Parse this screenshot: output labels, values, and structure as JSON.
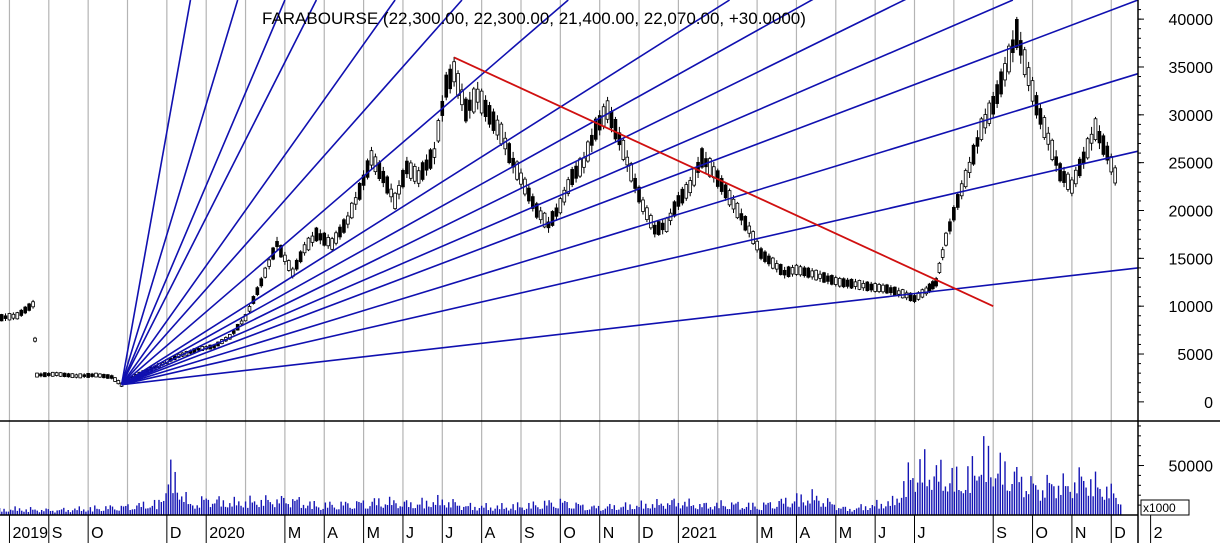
{
  "chart_data": {
    "type": "candlestick",
    "title": "FARABOURSE (22,300.00, 22,300.00, 21,400.00, 22,070.00, +30.0000)",
    "price_axis": {
      "ylim": [
        -2000,
        42000
      ],
      "ticks": [
        "0",
        "5000",
        "10000",
        "15000",
        "20000",
        "25000",
        "30000",
        "35000",
        "40000"
      ],
      "tick_values": [
        0,
        5000,
        10000,
        15000,
        20000,
        25000,
        30000,
        35000,
        40000
      ]
    },
    "volume_axis": {
      "unit_label": "x1000",
      "ticks": [
        "50000"
      ],
      "tick_values": [
        50000
      ],
      "ylim": [
        0,
        95000
      ]
    },
    "x_axis": {
      "labels": [
        "2019",
        "S",
        "O",
        "D",
        "2020",
        "M",
        "A",
        "M",
        "J",
        "J",
        "A",
        "S",
        "O",
        "N",
        "D",
        "2021",
        "M",
        "A",
        "M",
        "J",
        "J",
        "S",
        "O",
        "N",
        "D",
        "2"
      ],
      "label_months": [
        7,
        8,
        9,
        11,
        12,
        14,
        15,
        16,
        17,
        18,
        19,
        20,
        21,
        22,
        23,
        24,
        26,
        27,
        28,
        29,
        30,
        32,
        33,
        34,
        35,
        36
      ]
    },
    "grid": true,
    "price_series": [
      {
        "t": 6.0,
        "v": 9800
      },
      {
        "t": 6.4,
        "v": 9500
      },
      {
        "t": 6.8,
        "v": 8800
      },
      {
        "t": 7.2,
        "v": 9000
      },
      {
        "t": 7.6,
        "v": 10200
      },
      {
        "t": 7.7,
        "v": 2800
      },
      {
        "t": 8.2,
        "v": 2900
      },
      {
        "t": 8.7,
        "v": 2700
      },
      {
        "t": 9.2,
        "v": 2800
      },
      {
        "t": 9.6,
        "v": 2600
      },
      {
        "t": 9.85,
        "v": 1800
      },
      {
        "t": 10.3,
        "v": 2900
      },
      {
        "t": 10.8,
        "v": 3800
      },
      {
        "t": 11.3,
        "v": 4800
      },
      {
        "t": 11.8,
        "v": 5500
      },
      {
        "t": 12.2,
        "v": 5800
      },
      {
        "t": 12.6,
        "v": 6800
      },
      {
        "t": 13.0,
        "v": 8800
      },
      {
        "t": 13.4,
        "v": 12500
      },
      {
        "t": 13.8,
        "v": 16500
      },
      {
        "t": 14.2,
        "v": 13500
      },
      {
        "t": 14.5,
        "v": 16000
      },
      {
        "t": 14.8,
        "v": 17500
      },
      {
        "t": 15.2,
        "v": 16500
      },
      {
        "t": 15.6,
        "v": 19000
      },
      {
        "t": 15.9,
        "v": 22000
      },
      {
        "t": 16.2,
        "v": 25500
      },
      {
        "t": 16.5,
        "v": 23500
      },
      {
        "t": 16.8,
        "v": 21000
      },
      {
        "t": 17.1,
        "v": 24500
      },
      {
        "t": 17.4,
        "v": 23500
      },
      {
        "t": 17.8,
        "v": 26000
      },
      {
        "t": 18.1,
        "v": 33000
      },
      {
        "t": 18.3,
        "v": 34500
      },
      {
        "t": 18.6,
        "v": 30500
      },
      {
        "t": 18.9,
        "v": 32000
      },
      {
        "t": 19.2,
        "v": 30000
      },
      {
        "t": 19.5,
        "v": 28000
      },
      {
        "t": 19.8,
        "v": 25000
      },
      {
        "t": 20.1,
        "v": 22500
      },
      {
        "t": 20.4,
        "v": 20000
      },
      {
        "t": 20.7,
        "v": 18500
      },
      {
        "t": 21.0,
        "v": 20500
      },
      {
        "t": 21.3,
        "v": 23500
      },
      {
        "t": 21.6,
        "v": 25000
      },
      {
        "t": 21.9,
        "v": 28500
      },
      {
        "t": 22.2,
        "v": 30500
      },
      {
        "t": 22.5,
        "v": 27500
      },
      {
        "t": 22.8,
        "v": 24000
      },
      {
        "t": 23.1,
        "v": 20500
      },
      {
        "t": 23.4,
        "v": 18000
      },
      {
        "t": 23.7,
        "v": 18500
      },
      {
        "t": 24.0,
        "v": 21000
      },
      {
        "t": 24.3,
        "v": 22500
      },
      {
        "t": 24.6,
        "v": 25500
      },
      {
        "t": 24.9,
        "v": 24000
      },
      {
        "t": 25.2,
        "v": 22000
      },
      {
        "t": 25.5,
        "v": 20000
      },
      {
        "t": 25.8,
        "v": 18000
      },
      {
        "t": 26.1,
        "v": 15500
      },
      {
        "t": 26.4,
        "v": 14500
      },
      {
        "t": 26.7,
        "v": 13500
      },
      {
        "t": 27.0,
        "v": 13800
      },
      {
        "t": 27.3,
        "v": 13500
      },
      {
        "t": 27.7,
        "v": 13000
      },
      {
        "t": 28.1,
        "v": 12500
      },
      {
        "t": 28.5,
        "v": 12300
      },
      {
        "t": 28.9,
        "v": 12000
      },
      {
        "t": 29.3,
        "v": 11800
      },
      {
        "t": 29.7,
        "v": 11300
      },
      {
        "t": 30.0,
        "v": 10800
      },
      {
        "t": 30.3,
        "v": 11600
      },
      {
        "t": 30.55,
        "v": 12500
      },
      {
        "t": 30.8,
        "v": 17000
      },
      {
        "t": 31.1,
        "v": 21000
      },
      {
        "t": 31.4,
        "v": 24500
      },
      {
        "t": 31.7,
        "v": 28500
      },
      {
        "t": 32.0,
        "v": 31000
      },
      {
        "t": 32.3,
        "v": 34500
      },
      {
        "t": 32.6,
        "v": 38500
      },
      {
        "t": 32.8,
        "v": 35500
      },
      {
        "t": 33.1,
        "v": 31000
      },
      {
        "t": 33.4,
        "v": 27500
      },
      {
        "t": 33.7,
        "v": 24000
      },
      {
        "t": 34.0,
        "v": 22500
      },
      {
        "t": 34.3,
        "v": 25500
      },
      {
        "t": 34.6,
        "v": 28500
      },
      {
        "t": 34.9,
        "v": 26000
      },
      {
        "t": 35.2,
        "v": 22500
      }
    ],
    "volume_bars": [
      {
        "t": 6.3,
        "v": 6000
      },
      {
        "t": 7.2,
        "v": 9000
      },
      {
        "t": 8.1,
        "v": 7000
      },
      {
        "t": 9.9,
        "v": 12000
      },
      {
        "t": 10.8,
        "v": 17000
      },
      {
        "t": 11.1,
        "v": 60000
      },
      {
        "t": 11.6,
        "v": 14000
      },
      {
        "t": 12.0,
        "v": 23000
      },
      {
        "t": 12.6,
        "v": 18000
      },
      {
        "t": 13.4,
        "v": 21000
      },
      {
        "t": 14.2,
        "v": 22000
      },
      {
        "t": 14.8,
        "v": 14000
      },
      {
        "t": 15.6,
        "v": 16000
      },
      {
        "t": 16.5,
        "v": 20000
      },
      {
        "t": 17.2,
        "v": 16000
      },
      {
        "t": 18.0,
        "v": 21000
      },
      {
        "t": 18.6,
        "v": 13000
      },
      {
        "t": 19.4,
        "v": 12000
      },
      {
        "t": 20.2,
        "v": 14000
      },
      {
        "t": 21.0,
        "v": 19000
      },
      {
        "t": 21.8,
        "v": 11000
      },
      {
        "t": 22.6,
        "v": 13000
      },
      {
        "t": 23.4,
        "v": 16000
      },
      {
        "t": 24.0,
        "v": 19000
      },
      {
        "t": 24.6,
        "v": 14000
      },
      {
        "t": 25.3,
        "v": 16000
      },
      {
        "t": 26.0,
        "v": 13000
      },
      {
        "t": 27.4,
        "v": 27000
      },
      {
        "t": 28.3,
        "v": 8000
      },
      {
        "t": 29.5,
        "v": 20000
      },
      {
        "t": 29.9,
        "v": 60000
      },
      {
        "t": 30.2,
        "v": 70000
      },
      {
        "t": 30.5,
        "v": 62000
      },
      {
        "t": 30.9,
        "v": 55000
      },
      {
        "t": 31.3,
        "v": 48000
      },
      {
        "t": 31.7,
        "v": 88000
      },
      {
        "t": 32.0,
        "v": 72000
      },
      {
        "t": 32.3,
        "v": 64000
      },
      {
        "t": 32.6,
        "v": 56000
      },
      {
        "t": 32.9,
        "v": 45000
      },
      {
        "t": 33.2,
        "v": 40000
      },
      {
        "t": 33.6,
        "v": 48000
      },
      {
        "t": 33.9,
        "v": 42000
      },
      {
        "t": 34.3,
        "v": 55000
      },
      {
        "t": 34.6,
        "v": 45000
      },
      {
        "t": 35.0,
        "v": 34000
      },
      {
        "t": 35.3,
        "v": 22000
      }
    ],
    "annotations": {
      "gann_fan": {
        "origin": {
          "t": 9.85,
          "v": 1800
        },
        "end_values_at_axis": [
          61000,
          54000,
          42000,
          34300,
          26200,
          14000
        ],
        "steep_line_tops": [
          {
            "t": 11.6
          },
          {
            "t": 12.8
          },
          {
            "t": 14.0
          },
          {
            "t": 14.8
          },
          {
            "t": 16.8
          },
          {
            "t": 18.5
          },
          {
            "t": 21.2
          },
          {
            "t": 25.3
          },
          {
            "t": 32.5
          }
        ],
        "color": "#1010b0"
      },
      "trend_line": {
        "from": {
          "t": 18.3,
          "v": 36000
        },
        "to": {
          "t": 32.0,
          "v": 10000
        },
        "color": "#d01010"
      }
    }
  }
}
